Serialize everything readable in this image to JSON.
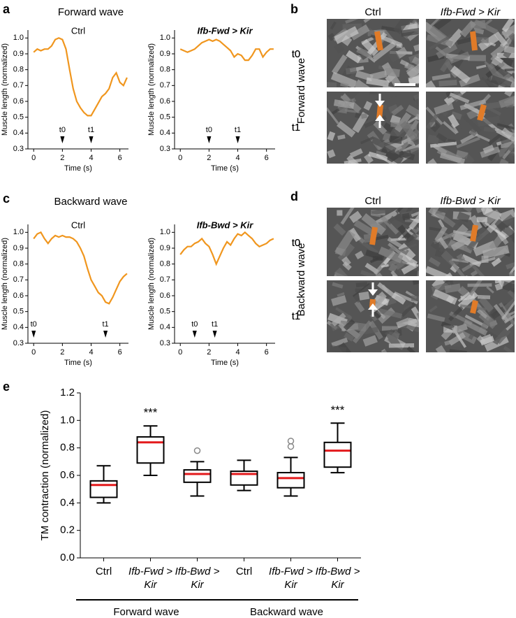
{
  "panel_labels": [
    "a",
    "b",
    "c",
    "d",
    "e"
  ],
  "section_titles": [
    "Forward wave",
    "Backward wave"
  ],
  "image_panels": [
    {
      "row_title": "Forward wave",
      "columns": [
        "Ctrl",
        "Ifb-Fwd > Kir"
      ],
      "rows": [
        "t0",
        "t1"
      ]
    },
    {
      "row_title": "Backward wave",
      "columns": [
        "Ctrl",
        "Ifb-Bwd > Kir"
      ],
      "rows": [
        "t0",
        "t1"
      ]
    }
  ],
  "chart_data": [
    {
      "type": "line",
      "title": "Ctrl",
      "italic": false,
      "xlabel": "Time (s)",
      "ylabel": "Muscle length (normalized)",
      "color": "#f0961e",
      "x": [
        0,
        0.25,
        0.5,
        0.75,
        1,
        1.25,
        1.5,
        1.75,
        2,
        2.25,
        2.5,
        2.75,
        3,
        3.25,
        3.5,
        3.75,
        4,
        4.25,
        4.5,
        4.75,
        5,
        5.25,
        5.5,
        5.75,
        6,
        6.25,
        6.5
      ],
      "values": [
        0.91,
        0.93,
        0.92,
        0.93,
        0.93,
        0.95,
        0.99,
        1.0,
        0.99,
        0.93,
        0.8,
        0.68,
        0.6,
        0.56,
        0.53,
        0.51,
        0.51,
        0.55,
        0.59,
        0.63,
        0.65,
        0.68,
        0.75,
        0.78,
        0.72,
        0.7,
        0.75
      ],
      "markers": [
        {
          "label": "t0",
          "x": 2
        },
        {
          "label": "t1",
          "x": 4
        }
      ],
      "xlim": [
        -0.4,
        6.6
      ],
      "xticks": [
        0,
        2,
        4,
        6
      ],
      "ylim": [
        0.3,
        1.05
      ],
      "yticks": [
        0.3,
        0.4,
        0.5,
        0.6,
        0.7,
        0.8,
        0.9,
        {
          "value": 1,
          "label": "1.0"
        }
      ]
    },
    {
      "type": "line",
      "title": "Ifb-Fwd > Kir",
      "italic": true,
      "xlabel": "Time (s)",
      "ylabel": "Muscle length (normalized)",
      "color": "#f0961e",
      "x": [
        0,
        0.25,
        0.5,
        0.75,
        1,
        1.25,
        1.5,
        1.75,
        2,
        2.25,
        2.5,
        2.75,
        3,
        3.25,
        3.5,
        3.75,
        4,
        4.25,
        4.5,
        4.75,
        5,
        5.25,
        5.5,
        5.75,
        6,
        6.25,
        6.5
      ],
      "values": [
        0.93,
        0.92,
        0.91,
        0.92,
        0.93,
        0.95,
        0.97,
        0.98,
        0.99,
        0.98,
        0.99,
        0.98,
        0.96,
        0.94,
        0.92,
        0.88,
        0.9,
        0.89,
        0.86,
        0.86,
        0.89,
        0.93,
        0.93,
        0.88,
        0.91,
        0.93,
        0.93
      ],
      "markers": [
        {
          "label": "t0",
          "x": 2
        },
        {
          "label": "t1",
          "x": 4
        }
      ],
      "xlim": [
        -0.4,
        6.6
      ],
      "xticks": [
        0,
        2,
        4,
        6
      ],
      "ylim": [
        0.3,
        1.05
      ],
      "yticks": [
        0.3,
        0.4,
        0.5,
        0.6,
        0.7,
        0.8,
        0.9,
        {
          "value": 1,
          "label": "1.0"
        }
      ]
    },
    {
      "type": "line",
      "title": "Ctrl",
      "italic": false,
      "xlabel": "Time (s)",
      "ylabel": "Muscle length (normalized)",
      "color": "#f0961e",
      "x": [
        0,
        0.25,
        0.5,
        0.75,
        1,
        1.25,
        1.5,
        1.75,
        2,
        2.25,
        2.5,
        2.75,
        3,
        3.25,
        3.5,
        3.75,
        4,
        4.25,
        4.5,
        4.75,
        5,
        5.25,
        5.5,
        5.75,
        6,
        6.25,
        6.5
      ],
      "values": [
        0.96,
        0.99,
        1.0,
        0.96,
        0.93,
        0.96,
        0.98,
        0.97,
        0.98,
        0.97,
        0.97,
        0.96,
        0.94,
        0.9,
        0.85,
        0.77,
        0.7,
        0.66,
        0.62,
        0.6,
        0.56,
        0.55,
        0.59,
        0.64,
        0.69,
        0.72,
        0.74
      ],
      "markers": [
        {
          "label": "t0",
          "x": 0
        },
        {
          "label": "t1",
          "x": 5
        }
      ],
      "xlim": [
        -0.4,
        6.6
      ],
      "xticks": [
        0,
        2,
        4,
        6
      ],
      "ylim": [
        0.3,
        1.05
      ],
      "yticks": [
        0.3,
        0.4,
        0.5,
        0.6,
        0.7,
        0.8,
        0.9,
        {
          "value": 1,
          "label": "1.0"
        }
      ]
    },
    {
      "type": "line",
      "title": "Ifb-Bwd > Kir",
      "italic": true,
      "xlabel": "Time (s)",
      "ylabel": "Muscle length (normalized)",
      "color": "#f0961e",
      "x": [
        0,
        0.25,
        0.5,
        0.75,
        1,
        1.25,
        1.5,
        1.75,
        2,
        2.25,
        2.5,
        2.75,
        3,
        3.25,
        3.5,
        3.75,
        4,
        4.25,
        4.5,
        4.75,
        5,
        5.25,
        5.5,
        5.75,
        6,
        6.25,
        6.5
      ],
      "values": [
        0.86,
        0.89,
        0.91,
        0.91,
        0.93,
        0.94,
        0.96,
        0.93,
        0.91,
        0.86,
        0.8,
        0.85,
        0.9,
        0.94,
        0.92,
        0.96,
        0.99,
        0.98,
        1.0,
        0.98,
        0.96,
        0.93,
        0.91,
        0.92,
        0.93,
        0.95,
        0.96
      ],
      "markers": [
        {
          "label": "t0",
          "x": 1
        },
        {
          "label": "t1",
          "x": 2.4
        }
      ],
      "xlim": [
        -0.4,
        6.6
      ],
      "xticks": [
        0,
        2,
        4,
        6
      ],
      "ylim": [
        0.3,
        1.05
      ],
      "yticks": [
        0.3,
        0.4,
        0.5,
        0.6,
        0.7,
        0.8,
        0.9,
        {
          "value": 1,
          "label": "1.0"
        }
      ]
    },
    {
      "type": "box",
      "ylabel": "TM contraction (normalized)",
      "categories": [
        "Ctrl",
        "Ifb-Fwd > Kir",
        "Ifb-Bwd > Kir",
        "Ctrl",
        "Ifb-Fwd > Kir",
        "Ifb-Bwd > Kir"
      ],
      "italic_categories": [
        false,
        true,
        true,
        false,
        true,
        true
      ],
      "groups": [
        "Forward wave",
        "Backward wave"
      ],
      "boxes": [
        {
          "min": 0.4,
          "q1": 0.44,
          "median": 0.53,
          "q3": 0.56,
          "max": 0.67,
          "outliers": []
        },
        {
          "min": 0.6,
          "q1": 0.69,
          "median": 0.84,
          "q3": 0.88,
          "max": 0.96,
          "outliers": [],
          "annotation": "***"
        },
        {
          "min": 0.45,
          "q1": 0.55,
          "median": 0.61,
          "q3": 0.64,
          "max": 0.7,
          "outliers": [
            0.78
          ]
        },
        {
          "min": 0.49,
          "q1": 0.53,
          "median": 0.61,
          "q3": 0.63,
          "max": 0.71,
          "outliers": []
        },
        {
          "min": 0.45,
          "q1": 0.51,
          "median": 0.58,
          "q3": 0.62,
          "max": 0.73,
          "outliers": [
            0.81,
            0.85
          ]
        },
        {
          "min": 0.62,
          "q1": 0.66,
          "median": 0.78,
          "q3": 0.84,
          "max": 0.98,
          "outliers": [],
          "annotation": "***"
        }
      ],
      "box_color": "#000000",
      "median_color": "#e31a1c",
      "outlier_color": "#888888",
      "ylim": [
        0,
        1.2
      ],
      "yticks": [
        {
          "value": 0,
          "label": "0.0"
        },
        0.2,
        0.4,
        0.6,
        0.8,
        {
          "value": 1,
          "label": "1.0"
        },
        1.2
      ]
    }
  ]
}
